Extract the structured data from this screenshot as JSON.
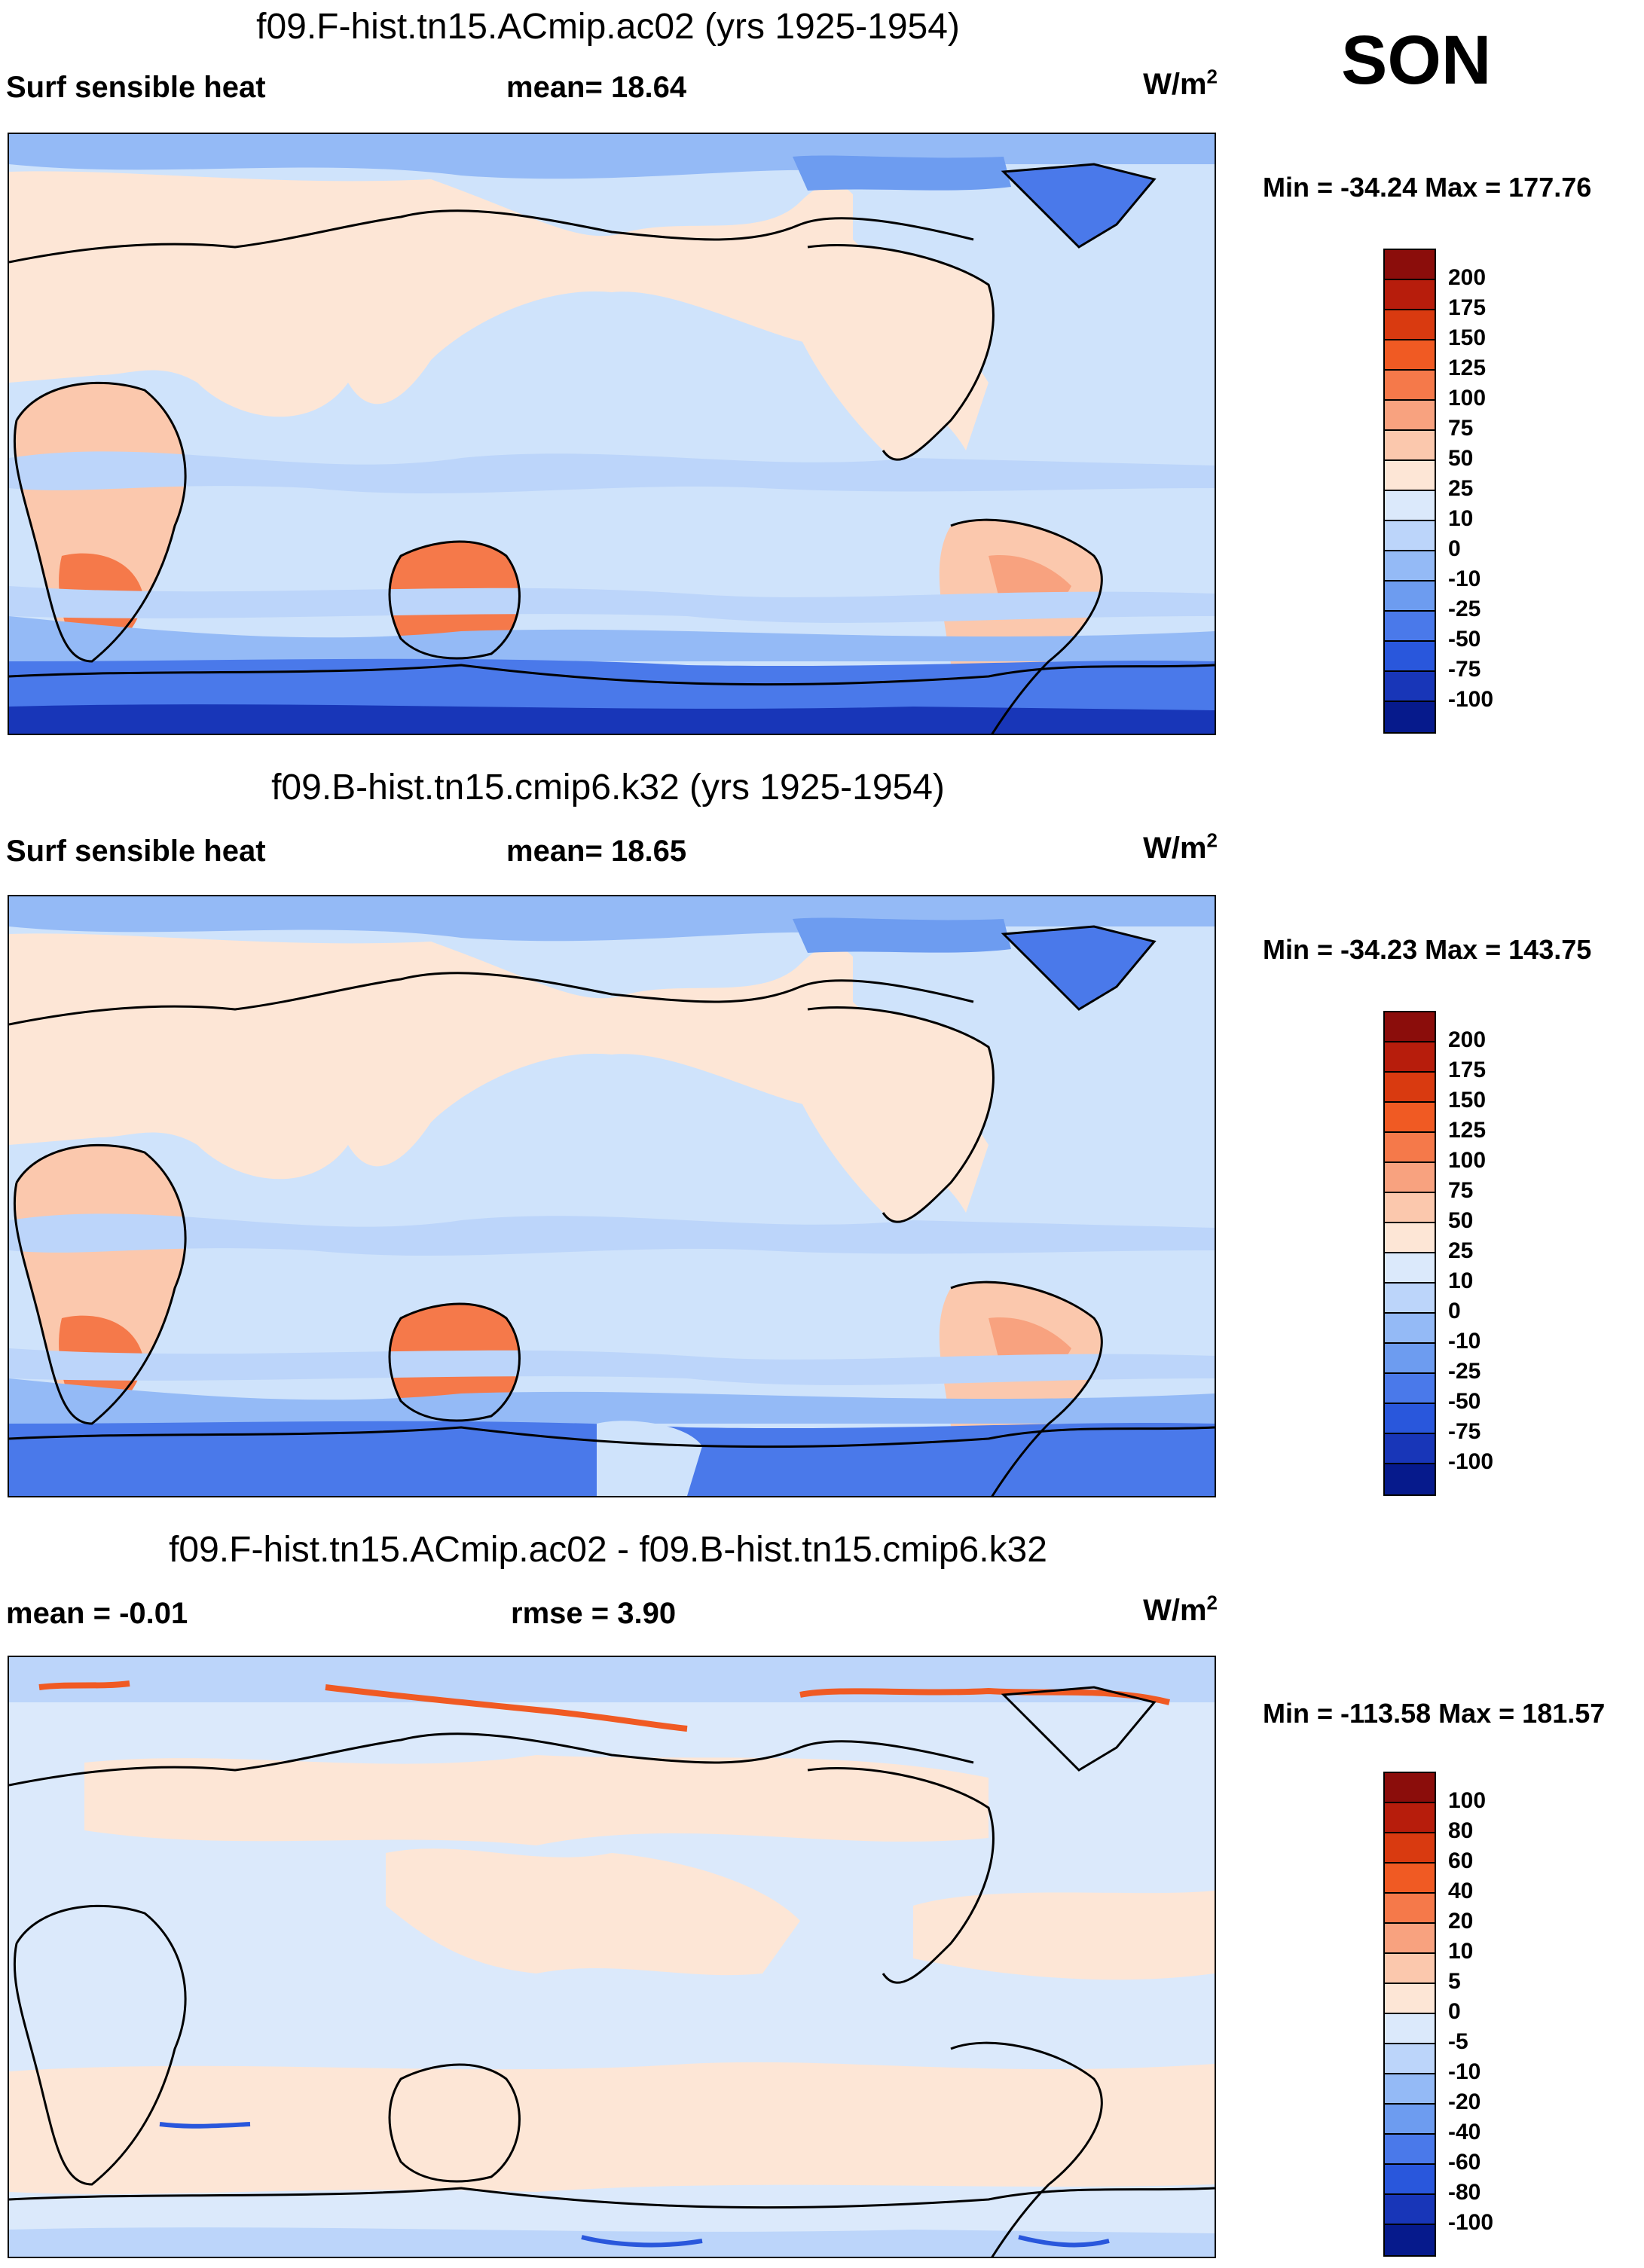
{
  "season": "SON",
  "panels": [
    {
      "title": "f09.F-hist.tn15.ACmip.ac02 (yrs 1925-1954)",
      "left_label": "Surf sensible heat",
      "center_label": "mean=  18.64",
      "units": "W/m",
      "units_sup": "2",
      "minmax": "Min = -34.24 Max = 177.76",
      "map_kind": "absolute"
    },
    {
      "title": "f09.B-hist.tn15.cmip6.k32 (yrs 1925-1954)",
      "left_label": "Surf sensible heat",
      "center_label": "mean=  18.65",
      "units": "W/m",
      "units_sup": "2",
      "minmax": "Min = -34.23 Max = 143.75",
      "map_kind": "absolute"
    },
    {
      "title": "f09.F-hist.tn15.ACmip.ac02 - f09.B-hist.tn15.cmip6.k32",
      "left_label": "mean =  -0.01",
      "center_label": "rmse =    3.90",
      "units": "W/m",
      "units_sup": "2",
      "minmax": "Min = -113.58 Max = 181.57",
      "map_kind": "difference"
    }
  ],
  "colorbars": {
    "absolute": {
      "labels": [
        "200",
        "175",
        "150",
        "125",
        "100",
        "75",
        "50",
        "25",
        "10",
        "0",
        "-10",
        "-25",
        "-50",
        "-75",
        "-100"
      ],
      "colors": [
        "#8b0d0b",
        "#b71d0c",
        "#d93a10",
        "#f05a23",
        "#f5794a",
        "#f8a27f",
        "#fbc8ad",
        "#fde6d6",
        "#dbe9fb",
        "#bcd5fa",
        "#94baf6",
        "#6d9cf0",
        "#4a79ea",
        "#2957dc",
        "#1836b8",
        "#061a8c"
      ]
    },
    "difference": {
      "labels": [
        "100",
        "80",
        "60",
        "40",
        "20",
        "10",
        "5",
        "0",
        "-5",
        "-10",
        "-20",
        "-40",
        "-60",
        "-80",
        "-100"
      ],
      "colors": [
        "#8b0d0b",
        "#b71d0c",
        "#d93a10",
        "#f05a23",
        "#f5794a",
        "#f8a27f",
        "#fbc8ad",
        "#fde6d6",
        "#dbe9fb",
        "#bcd5fa",
        "#94baf6",
        "#6d9cf0",
        "#4a79ea",
        "#2957dc",
        "#1836b8",
        "#061a8c"
      ]
    }
  }
}
